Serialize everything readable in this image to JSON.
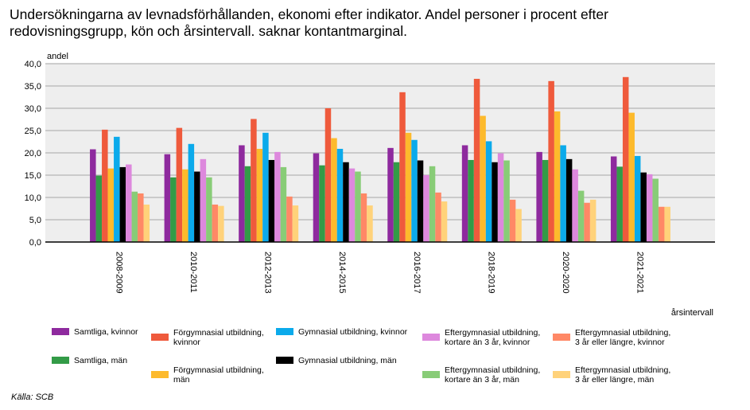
{
  "title_lines": [
    "Undersökningarna av levnadsförhållanden, ekonomi efter indikator. Andel personer i procent efter",
    "redovisningsgrupp, kön och årsintervall. saknar kontantmarginal."
  ],
  "source": "Källa: SCB",
  "chart_data": {
    "type": "bar",
    "title": "Undersökningarna av levnadsförhållanden, ekonomi efter indikator. Andel personer i procent efter redovisningsgrupp, kön och årsintervall. saknar kontantmarginal.",
    "xlabel": "årsintervall",
    "ylabel": "andel",
    "ylim": [
      0,
      40
    ],
    "yticks": [
      "0,0",
      "5,0",
      "10,0",
      "15,0",
      "20,0",
      "25,0",
      "30,0",
      "35,0",
      "40,0"
    ],
    "ytick_values": [
      0,
      5,
      10,
      15,
      20,
      25,
      30,
      35,
      40
    ],
    "grid": true,
    "legend_position": "bottom",
    "categories": [
      "2008-2009",
      "2010-2011",
      "2012-2013",
      "2014-2015",
      "2016-2017",
      "2018-2019",
      "2020-2020",
      "2021-2021"
    ],
    "series": [
      {
        "name": "Samtliga, kvinnor",
        "legend_lines": [
          "Samtliga, kvinnor"
        ],
        "color": "#8E2A9E",
        "values": [
          20.8,
          19.7,
          21.7,
          19.9,
          21.1,
          21.7,
          20.2,
          19.2
        ]
      },
      {
        "name": "Samtliga, män",
        "legend_lines": [
          "Samtliga, män"
        ],
        "color": "#339B47",
        "values": [
          14.9,
          14.5,
          17.0,
          17.2,
          17.9,
          18.4,
          18.4,
          16.9
        ]
      },
      {
        "name": "Förgymnasial utbildning, kvinnor",
        "legend_lines": [
          "Förgymnasial utbildning,",
          "kvinnor"
        ],
        "color": "#EF5A3C",
        "values": [
          25.2,
          25.6,
          27.6,
          30.0,
          33.6,
          36.6,
          36.1,
          37.0
        ]
      },
      {
        "name": "Förgymnasial utbildning, män",
        "legend_lines": [
          "Förgymnasial utbildning,",
          "män"
        ],
        "color": "#FDBA2C",
        "values": [
          16.5,
          16.3,
          20.9,
          23.3,
          24.5,
          28.3,
          29.3,
          29.0
        ]
      },
      {
        "name": "Gymnasial utbildning, kvinnor",
        "legend_lines": [
          "Gymnasial utbildning, kvinnor"
        ],
        "color": "#0BAAEB",
        "values": [
          23.6,
          22.0,
          24.5,
          20.9,
          22.9,
          22.6,
          21.7,
          19.3
        ]
      },
      {
        "name": "Gymnasial utbildning, män",
        "legend_lines": [
          "Gymnasial utbildning, män"
        ],
        "color": "#000000",
        "values": [
          16.8,
          15.8,
          18.4,
          17.9,
          18.3,
          17.9,
          18.6,
          15.6
        ]
      },
      {
        "name": "Eftergymnasial utbildning, kortare än 3 år, kvinnor",
        "legend_lines": [
          "Eftergymnasial utbildning,",
          "kortare än 3 år, kvinnor"
        ],
        "color": "#DD88DD",
        "values": [
          17.4,
          18.6,
          20.2,
          16.5,
          15.0,
          19.9,
          16.3,
          15.2
        ]
      },
      {
        "name": "Eftergymnasial utbildning, kortare än 3 år, män",
        "legend_lines": [
          "Eftergymnasial utbildning,",
          "kortare än 3 år, män"
        ],
        "color": "#88CC77",
        "values": [
          11.3,
          14.5,
          16.8,
          15.8,
          17.0,
          18.3,
          11.5,
          14.2
        ]
      },
      {
        "name": "Eftergymnasial utbildning, 3 år eller längre, kvinnor",
        "legend_lines": [
          "Eftergymnasial utbildning,",
          "3 år eller längre, kvinnor"
        ],
        "color": "#FF8866",
        "values": [
          10.9,
          8.4,
          10.2,
          10.9,
          11.1,
          9.5,
          8.8,
          7.9
        ]
      },
      {
        "name": "Eftergymnasial utbildning, 3 år eller längre, män",
        "legend_lines": [
          "Eftergymnasial utbildning,",
          "3 år eller längre, män"
        ],
        "color": "#FFD27A",
        "values": [
          8.4,
          8.1,
          8.2,
          8.2,
          9.1,
          7.4,
          9.5,
          7.9
        ]
      }
    ]
  }
}
